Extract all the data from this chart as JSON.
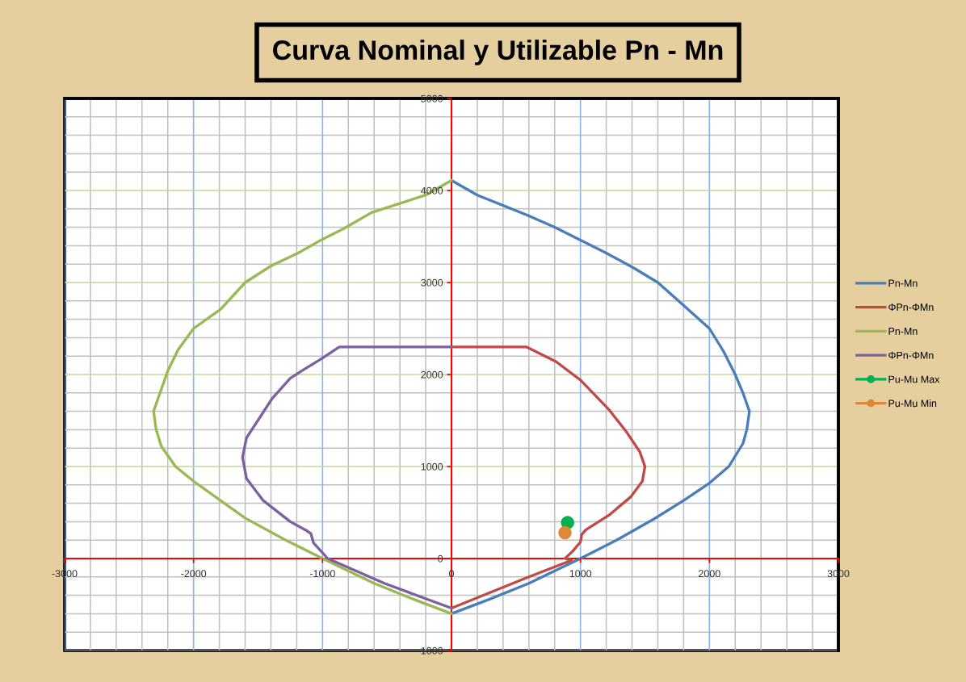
{
  "chart_data": {
    "type": "line",
    "title": "Curva Nominal y Utilizable Pn - Mn",
    "xlim": [
      -3000,
      3000
    ],
    "ylim": [
      -1000,
      5000
    ],
    "xticks": [
      -3000,
      -2000,
      -1000,
      0,
      1000,
      2000,
      3000
    ],
    "yticks": [
      -1000,
      0,
      1000,
      2000,
      3000,
      4000,
      5000
    ],
    "grid": true,
    "legend": "right",
    "series": [
      {
        "name": "Pn-Mn",
        "color": "#4a7ebb",
        "x": [
          0,
          200,
          590,
          800,
          1000,
          1200,
          1410,
          1600,
          1760,
          2000,
          2110,
          2200,
          2260,
          2310,
          2290,
          2260,
          2150,
          2000,
          1800,
          1570,
          1280,
          1000,
          850,
          600,
          300,
          0
        ],
        "values": [
          4110,
          3950,
          3730,
          3600,
          3460,
          3320,
          3160,
          3000,
          2800,
          2500,
          2250,
          2000,
          1800,
          1600,
          1400,
          1250,
          1000,
          820,
          630,
          430,
          200,
          0,
          -100,
          -270,
          -440,
          -600
        ]
      },
      {
        "name": "ΦPn-ΦMn",
        "color": "#be4b48",
        "x": [
          0,
          580,
          810,
          1000,
          1220,
          1360,
          1460,
          1500,
          1480,
          1390,
          1220,
          1040,
          1010,
          1000,
          940,
          880,
          930,
          580,
          0
        ],
        "values": [
          2300,
          2300,
          2140,
          1940,
          1620,
          1370,
          1160,
          1000,
          840,
          670,
          470,
          310,
          260,
          180,
          80,
          0,
          -20,
          -210,
          -540
        ]
      },
      {
        "name": "Pn-Mn",
        "color": "#98b954",
        "x": [
          0,
          -200,
          -620,
          -830,
          -1000,
          -1190,
          -1400,
          -1600,
          -1790,
          -2000,
          -2120,
          -2200,
          -2260,
          -2310,
          -2290,
          -2250,
          -2140,
          -2000,
          -1800,
          -1600,
          -1300,
          -1000,
          -850,
          -600,
          -300,
          0
        ],
        "values": [
          4110,
          3950,
          3760,
          3590,
          3470,
          3320,
          3180,
          3000,
          2710,
          2500,
          2270,
          2040,
          1800,
          1600,
          1400,
          1220,
          1000,
          840,
          640,
          440,
          210,
          0,
          -100,
          -270,
          -440,
          -600
        ]
      },
      {
        "name": "ΦPn-ΦMn",
        "color": "#7d60a0",
        "x": [
          0,
          -870,
          -1010,
          -1160,
          -1250,
          -1390,
          -1590,
          -1620,
          -1590,
          -1460,
          -1250,
          -1120,
          -1090,
          -1070,
          -960,
          -520,
          0
        ],
        "values": [
          2300,
          2300,
          2170,
          2040,
          1960,
          1740,
          1310,
          1100,
          870,
          630,
          400,
          300,
          270,
          170,
          0,
          -270,
          -540
        ]
      },
      {
        "name": "Pu-Mu Max",
        "type": "scatter",
        "marker": "circle",
        "color": "#00b050",
        "x": [
          900
        ],
        "values": [
          390
        ]
      },
      {
        "name": "Pu-Mu Min",
        "type": "scatter",
        "marker": "circle",
        "color": "#e0883a",
        "x": [
          880
        ],
        "values": [
          280
        ]
      }
    ]
  }
}
